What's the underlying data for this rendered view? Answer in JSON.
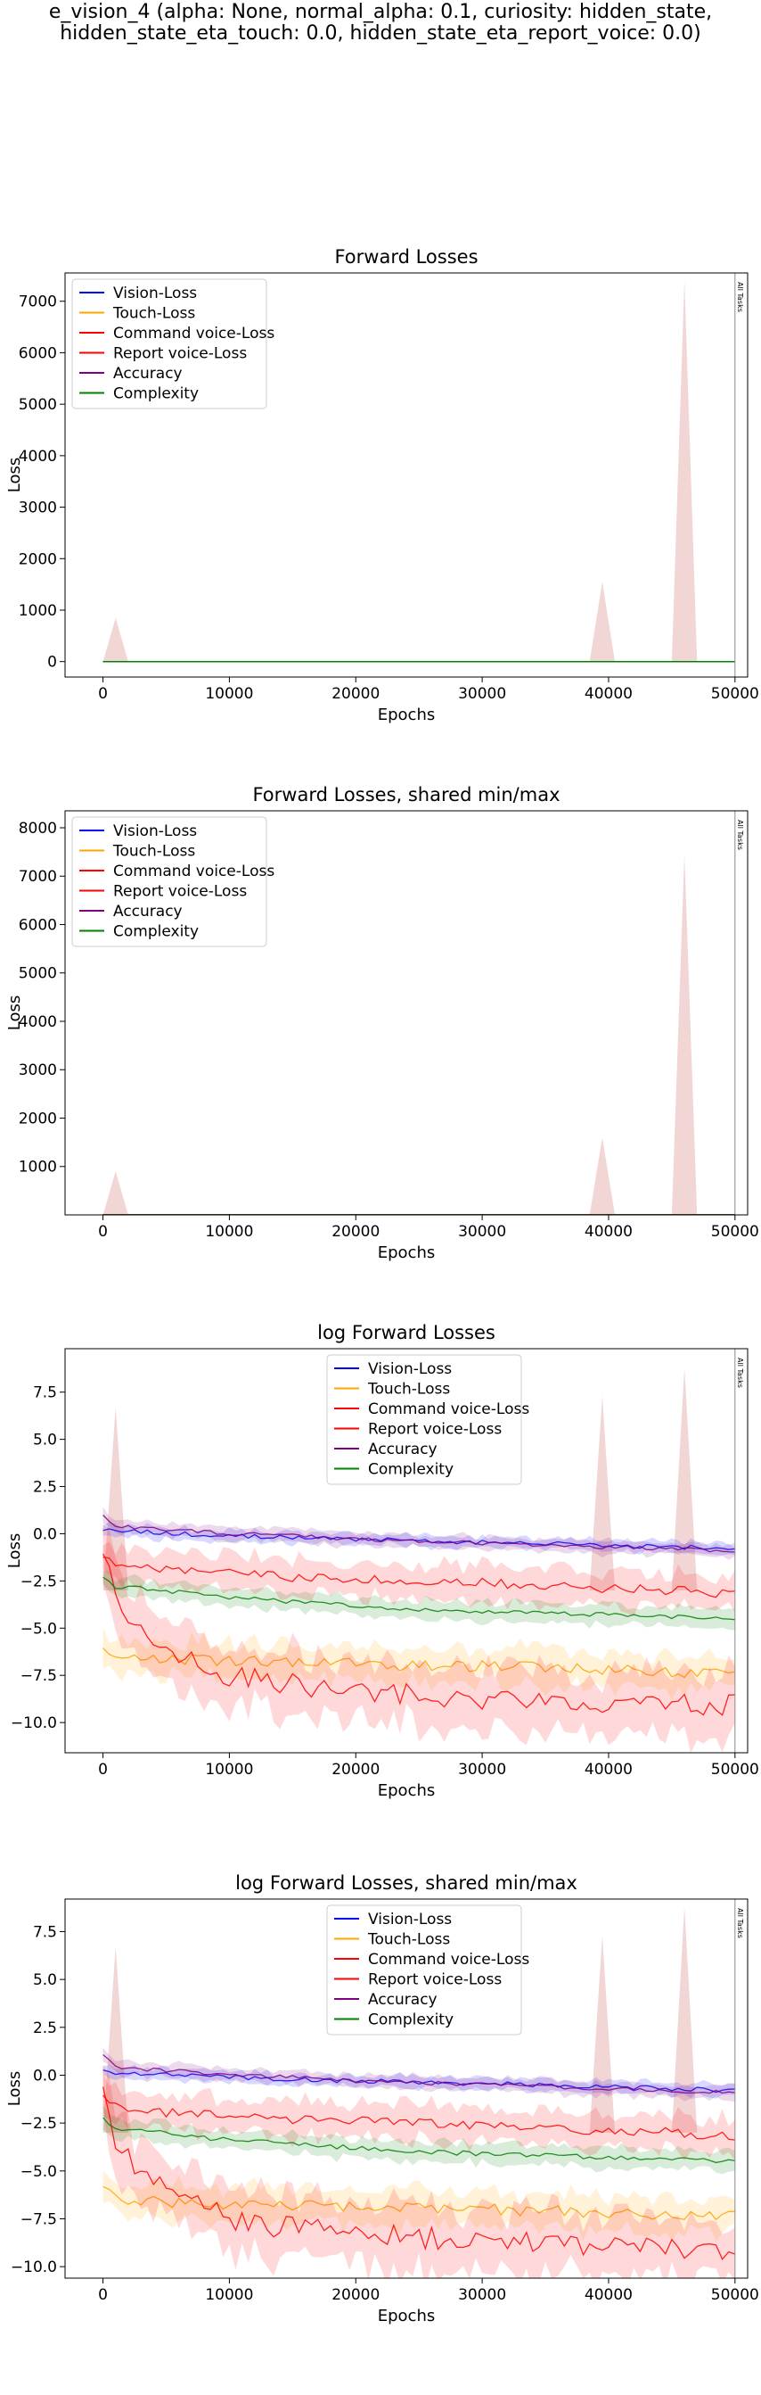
{
  "figure": {
    "suptitle_line1": "e_vision_4 (alpha: None, normal_alpha: 0.1, curiosity: hidden_state,",
    "suptitle_line2": "hidden_state_eta_touch: 0.0, hidden_state_eta_report_voice: 0.0)"
  },
  "chart_data": [
    {
      "type": "line",
      "title": "Forward Losses",
      "xlabel": "Epochs",
      "ylabel": "Loss",
      "xlim": [
        -3000,
        51000
      ],
      "ylim": [
        -300,
        7550
      ],
      "xticks": [
        0,
        10000,
        20000,
        30000,
        40000,
        50000
      ],
      "yticks": [
        0,
        1000,
        2000,
        3000,
        4000,
        5000,
        6000,
        7000
      ],
      "grid": false,
      "log_view": false,
      "legend_position": "upper-left",
      "annotation": "All Tasks",
      "series": [
        {
          "name": "Vision-Loss",
          "color": "#0000ff",
          "x": [
            0,
            50000
          ],
          "y": [
            0,
            0
          ]
        },
        {
          "name": "Touch-Loss",
          "color": "#ffa500",
          "x": [
            0,
            50000
          ],
          "y": [
            0,
            0
          ]
        },
        {
          "name": "Command voice-Loss",
          "color": "#ff0000",
          "x": [
            0,
            50000
          ],
          "y": [
            0,
            0
          ]
        },
        {
          "name": "Report voice-Loss",
          "color": "#ff0000",
          "x": [
            0,
            50000
          ],
          "y": [
            0,
            0
          ]
        },
        {
          "name": "Accuracy",
          "color": "#800080",
          "x": [
            0,
            50000
          ],
          "y": [
            0,
            0
          ]
        },
        {
          "name": "Complexity",
          "color": "#008000",
          "x": [
            0,
            50000
          ],
          "y": [
            0,
            0
          ]
        }
      ],
      "spikes": [
        {
          "x": 1000,
          "y": 850
        },
        {
          "x": 39500,
          "y": 1550
        },
        {
          "x": 46000,
          "y": 7400
        }
      ]
    },
    {
      "type": "line",
      "title": "Forward Losses, shared min/max",
      "xlabel": "Epochs",
      "ylabel": "Loss",
      "xlim": [
        -3000,
        51000
      ],
      "ylim": [
        0,
        8350
      ],
      "xticks": [
        0,
        10000,
        20000,
        30000,
        40000,
        50000
      ],
      "yticks": [
        1000,
        2000,
        3000,
        4000,
        5000,
        6000,
        7000,
        8000
      ],
      "grid": false,
      "log_view": false,
      "legend_position": "upper-left",
      "annotation": "All Tasks",
      "series": [
        {
          "name": "Vision-Loss",
          "color": "#0000ff",
          "x": [
            0,
            50000
          ],
          "y": [
            0,
            0
          ]
        },
        {
          "name": "Touch-Loss",
          "color": "#ffa500",
          "x": [
            0,
            50000
          ],
          "y": [
            0,
            0
          ]
        },
        {
          "name": "Command voice-Loss",
          "color": "#ff0000",
          "x": [
            0,
            50000
          ],
          "y": [
            0,
            0
          ]
        },
        {
          "name": "Report voice-Loss",
          "color": "#ff0000",
          "x": [
            0,
            50000
          ],
          "y": [
            0,
            0
          ]
        },
        {
          "name": "Accuracy",
          "color": "#800080",
          "x": [
            0,
            50000
          ],
          "y": [
            0,
            0
          ]
        },
        {
          "name": "Complexity",
          "color": "#008000",
          "x": [
            0,
            50000
          ],
          "y": [
            0,
            0
          ]
        }
      ],
      "spikes": [
        {
          "x": 1000,
          "y": 900
        },
        {
          "x": 39500,
          "y": 1600
        },
        {
          "x": 46000,
          "y": 7450
        }
      ]
    },
    {
      "type": "line",
      "title": "log Forward Losses",
      "xlabel": "Epochs",
      "ylabel": "Loss",
      "xlim": [
        -3000,
        51000
      ],
      "ylim": [
        -11.6,
        9.8
      ],
      "xticks": [
        0,
        10000,
        20000,
        30000,
        40000,
        50000
      ],
      "yticks": [
        -10.0,
        -7.5,
        -5.0,
        -2.5,
        0.0,
        2.5,
        5.0,
        7.5
      ],
      "grid": false,
      "log_view": true,
      "legend_position": "upper-center",
      "annotation": "All Tasks",
      "series": [
        {
          "name": "Vision-Loss",
          "color": "#0000ff",
          "x": [
            0,
            1000,
            3000,
            6000,
            10000,
            15000,
            20000,
            25000,
            30000,
            35000,
            40000,
            45000,
            50000
          ],
          "y": [
            0.2,
            0.1,
            0.1,
            0.0,
            -0.1,
            -0.2,
            -0.3,
            -0.35,
            -0.45,
            -0.5,
            -0.6,
            -0.7,
            -0.8
          ]
        },
        {
          "name": "Touch-Loss",
          "color": "#ffa500",
          "x": [
            0,
            1000,
            3000,
            6000,
            10000,
            15000,
            20000,
            25000,
            30000,
            35000,
            40000,
            45000,
            50000
          ],
          "y": [
            -6.0,
            -6.5,
            -6.6,
            -6.7,
            -6.7,
            -6.8,
            -6.9,
            -7.0,
            -7.0,
            -7.1,
            -7.2,
            -7.3,
            -7.4
          ]
        },
        {
          "name": "Command voice-Loss",
          "color": "#ff0000",
          "x": [
            0,
            1000,
            3000,
            6000,
            10000,
            15000,
            20000,
            25000,
            30000,
            35000,
            40000,
            45000,
            50000
          ],
          "y": [
            -1.2,
            -1.5,
            -1.8,
            -2.0,
            -2.1,
            -2.3,
            -2.4,
            -2.5,
            -2.6,
            -2.8,
            -2.9,
            -3.0,
            -3.2
          ]
        },
        {
          "name": "Report voice-Loss",
          "color": "#ff0000",
          "x": [
            0,
            1000,
            3000,
            6000,
            10000,
            15000,
            20000,
            25000,
            30000,
            35000,
            40000,
            45000,
            50000
          ],
          "y": [
            -1.0,
            -3.5,
            -5.0,
            -6.5,
            -7.5,
            -8.0,
            -8.3,
            -8.5,
            -8.7,
            -8.8,
            -8.9,
            -9.0,
            -9.1
          ]
        },
        {
          "name": "Accuracy",
          "color": "#800080",
          "x": [
            0,
            1000,
            3000,
            6000,
            10000,
            15000,
            20000,
            25000,
            30000,
            35000,
            40000,
            45000,
            50000
          ],
          "y": [
            1.0,
            0.4,
            0.3,
            0.2,
            0.0,
            -0.1,
            -0.3,
            -0.4,
            -0.5,
            -0.6,
            -0.7,
            -0.8,
            -0.9
          ]
        },
        {
          "name": "Complexity",
          "color": "#008000",
          "x": [
            0,
            1000,
            3000,
            6000,
            10000,
            15000,
            20000,
            25000,
            30000,
            35000,
            40000,
            45000,
            50000
          ],
          "y": [
            -2.3,
            -2.8,
            -2.9,
            -3.1,
            -3.4,
            -3.6,
            -3.8,
            -4.0,
            -4.1,
            -4.2,
            -4.3,
            -4.4,
            -4.5
          ]
        }
      ],
      "spikes": [
        {
          "x": 1000,
          "y": 6.7
        },
        {
          "x": 39500,
          "y": 7.3
        },
        {
          "x": 46000,
          "y": 8.8
        }
      ]
    },
    {
      "type": "line",
      "title": "log Forward Losses, shared min/max",
      "xlabel": "Epochs",
      "ylabel": "Loss",
      "xlim": [
        -3000,
        51000
      ],
      "ylim": [
        -10.6,
        9.2
      ],
      "xticks": [
        0,
        10000,
        20000,
        30000,
        40000,
        50000
      ],
      "yticks": [
        -10.0,
        -7.5,
        -5.0,
        -2.5,
        0.0,
        2.5,
        5.0,
        7.5
      ],
      "grid": false,
      "log_view": true,
      "legend_position": "upper-center",
      "annotation": "All Tasks",
      "series": [
        {
          "name": "Vision-Loss",
          "color": "#0000ff",
          "x": [
            0,
            1000,
            3000,
            6000,
            10000,
            15000,
            20000,
            25000,
            30000,
            35000,
            40000,
            45000,
            50000
          ],
          "y": [
            0.2,
            0.1,
            0.1,
            0.0,
            -0.1,
            -0.2,
            -0.3,
            -0.35,
            -0.45,
            -0.5,
            -0.6,
            -0.7,
            -0.8
          ]
        },
        {
          "name": "Touch-Loss",
          "color": "#ffa500",
          "x": [
            0,
            1000,
            3000,
            6000,
            10000,
            15000,
            20000,
            25000,
            30000,
            35000,
            40000,
            45000,
            50000
          ],
          "y": [
            -6.0,
            -6.5,
            -6.6,
            -6.7,
            -6.7,
            -6.8,
            -6.9,
            -7.0,
            -7.0,
            -7.1,
            -7.2,
            -7.3,
            -7.4
          ]
        },
        {
          "name": "Command voice-Loss",
          "color": "#ff0000",
          "x": [
            0,
            1000,
            3000,
            6000,
            10000,
            15000,
            20000,
            25000,
            30000,
            35000,
            40000,
            45000,
            50000
          ],
          "y": [
            -1.2,
            -1.5,
            -1.8,
            -2.0,
            -2.1,
            -2.3,
            -2.4,
            -2.5,
            -2.6,
            -2.8,
            -2.9,
            -3.0,
            -3.2
          ]
        },
        {
          "name": "Report voice-Loss",
          "color": "#ff0000",
          "x": [
            0,
            1000,
            3000,
            6000,
            10000,
            15000,
            20000,
            25000,
            30000,
            35000,
            40000,
            45000,
            50000
          ],
          "y": [
            -1.0,
            -3.5,
            -5.0,
            -6.5,
            -7.5,
            -8.0,
            -8.3,
            -8.5,
            -8.7,
            -8.8,
            -8.9,
            -9.0,
            -9.1
          ]
        },
        {
          "name": "Accuracy",
          "color": "#800080",
          "x": [
            0,
            1000,
            3000,
            6000,
            10000,
            15000,
            20000,
            25000,
            30000,
            35000,
            40000,
            45000,
            50000
          ],
          "y": [
            1.0,
            0.4,
            0.3,
            0.2,
            0.0,
            -0.1,
            -0.3,
            -0.4,
            -0.5,
            -0.6,
            -0.7,
            -0.8,
            -0.9
          ]
        },
        {
          "name": "Complexity",
          "color": "#008000",
          "x": [
            0,
            1000,
            3000,
            6000,
            10000,
            15000,
            20000,
            25000,
            30000,
            35000,
            40000,
            45000,
            50000
          ],
          "y": [
            -2.3,
            -2.8,
            -2.9,
            -3.1,
            -3.4,
            -3.6,
            -3.8,
            -4.0,
            -4.1,
            -4.2,
            -4.3,
            -4.4,
            -4.5
          ]
        }
      ],
      "spikes": [
        {
          "x": 1000,
          "y": 6.7
        },
        {
          "x": 39500,
          "y": 7.3
        },
        {
          "x": 46000,
          "y": 8.8
        }
      ]
    }
  ]
}
